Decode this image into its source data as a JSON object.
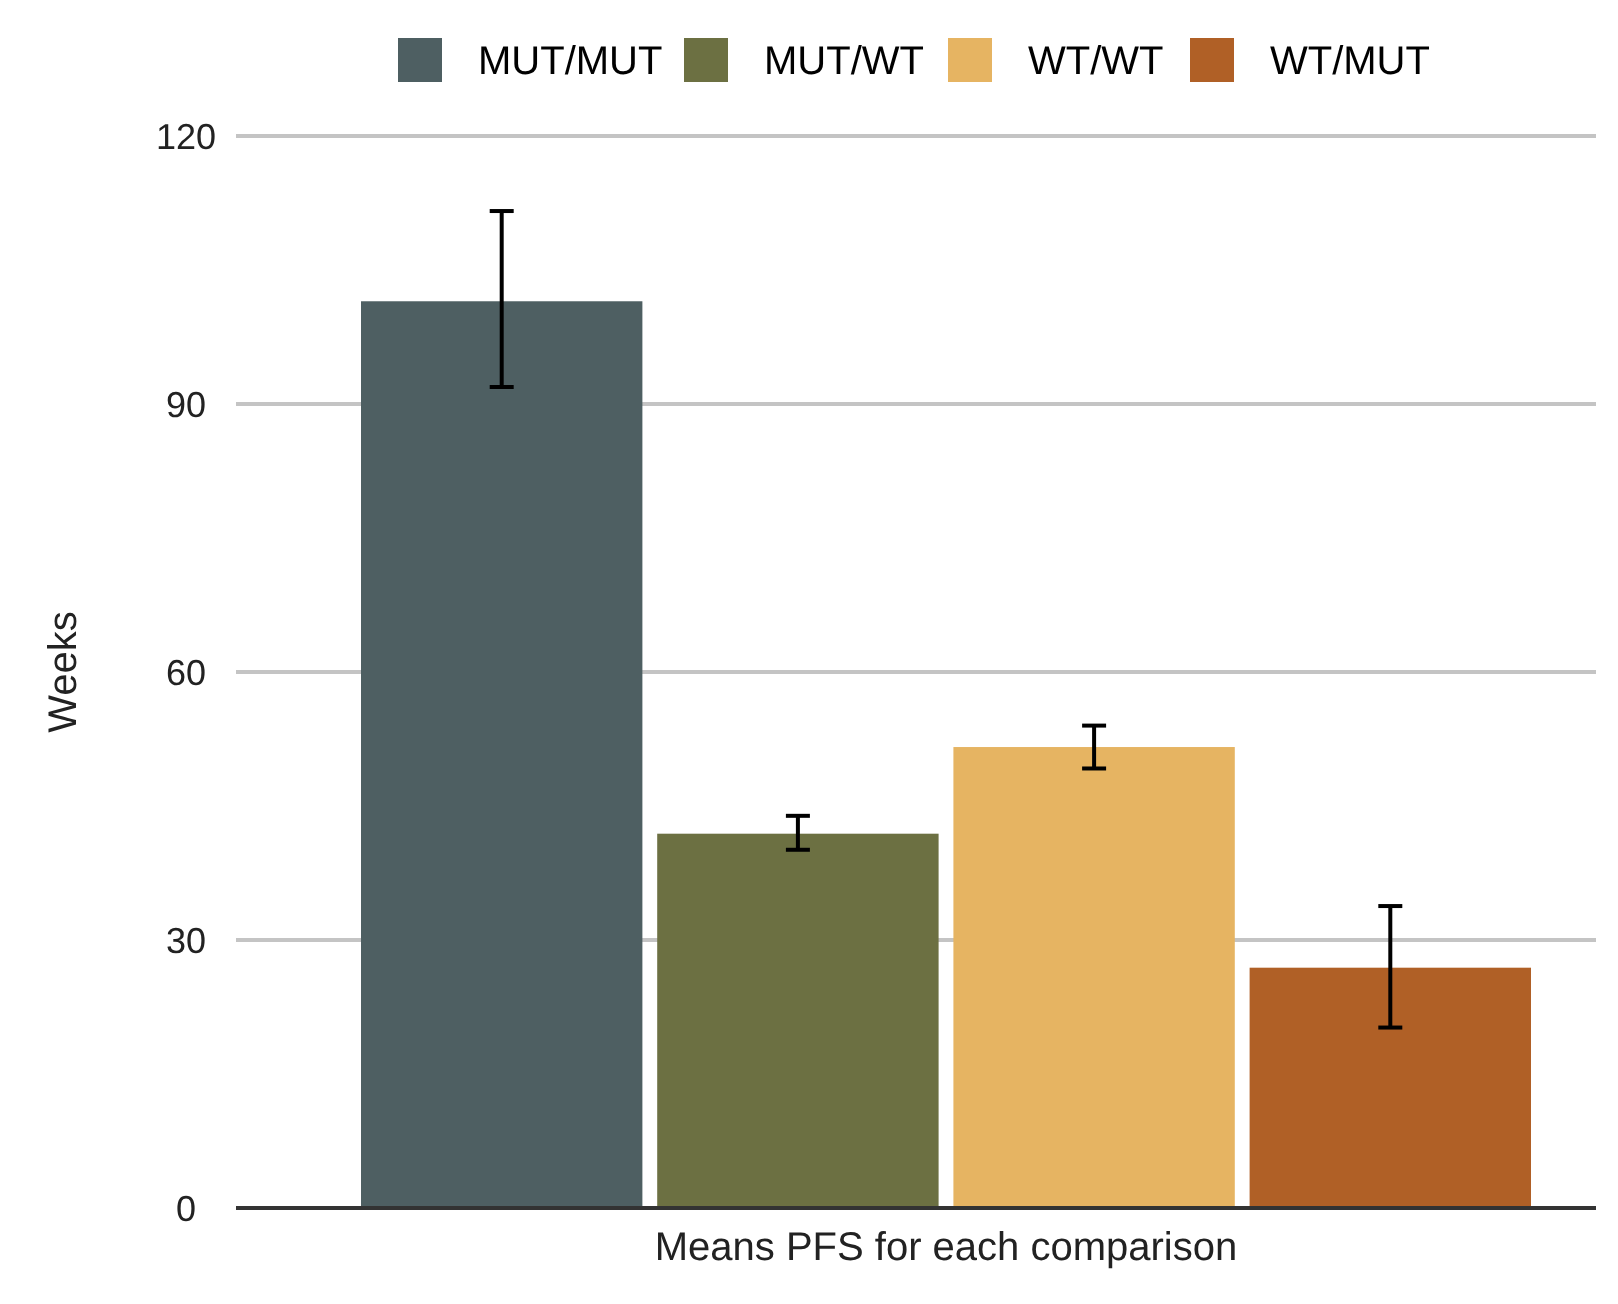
{
  "chart_data": {
    "type": "bar",
    "xlabel": "Means PFS for each comparison",
    "ylabel": "Weeks",
    "categories": [
      null
    ],
    "series": [
      {
        "name": "MUT/MUT",
        "color": "#4e5f62",
        "values": [
          101.5
        ],
        "errors": [
          [
            91.9,
            111.6
          ]
        ]
      },
      {
        "name": "MUT/WT",
        "color": "#6c7042",
        "values": [
          41.9
        ],
        "errors": [
          [
            40.1,
            43.9
          ]
        ]
      },
      {
        "name": "WT/WT",
        "color": "#e6b462",
        "values": [
          51.6
        ],
        "errors": [
          [
            49.2,
            54.0
          ]
        ]
      },
      {
        "name": "WT/MUT",
        "color": "#b06026",
        "values": [
          26.9
        ],
        "errors": [
          [
            20.2,
            33.8
          ]
        ]
      }
    ],
    "ylim": [
      0,
      120
    ],
    "yticks": [
      0,
      30,
      60,
      90,
      120
    ],
    "grid": "y",
    "legend": "top"
  }
}
